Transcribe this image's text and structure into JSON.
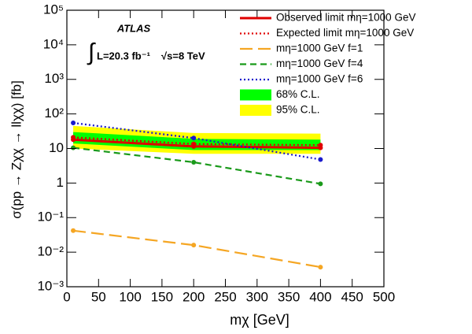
{
  "chart_data": {
    "type": "line",
    "x_label": "mχ [GeV]",
    "y_label": "σ(pp → Zχχ → llχχ) [fb]",
    "annotations": [
      "ATLAS",
      "∫",
      "L=20.3 fb⁻¹",
      "√s=8 TeV"
    ],
    "x": [
      10,
      200,
      400
    ],
    "xlim": [
      0,
      500
    ],
    "xticks": [
      0,
      50,
      100,
      150,
      200,
      250,
      300,
      350,
      400,
      450,
      500
    ],
    "ylim": [
      0.001,
      100000
    ],
    "yticks": [
      {
        "value": 0.001,
        "label": "10⁻³"
      },
      {
        "value": 0.01,
        "label": "10⁻²"
      },
      {
        "value": 0.1,
        "label": "10⁻¹"
      },
      1,
      10,
      {
        "value": 100,
        "label": "10²"
      },
      {
        "value": 1000,
        "label": "10³"
      },
      {
        "value": 10000,
        "label": "10⁴"
      },
      {
        "value": 100000,
        "label": "10⁵"
      }
    ],
    "log_y": true,
    "bands": [
      {
        "name": "95% C.L.",
        "color": "#ffff00",
        "low": [
          10,
          7,
          7
        ],
        "high": [
          45,
          28,
          27
        ]
      },
      {
        "name": "68% C.L.",
        "color": "#00ff00",
        "low": [
          14,
          9,
          9
        ],
        "high": [
          30,
          19,
          18
        ]
      }
    ],
    "series": [
      {
        "name": "Observed limit mη=1000 GeV",
        "color": "#e00000",
        "style": "solid",
        "values": [
          18,
          11.5,
          10.5
        ]
      },
      {
        "name": "Expected limit mη=1000 GeV",
        "color": "#e00000",
        "style": "dotted",
        "values": [
          21,
          13.5,
          12.5
        ]
      },
      {
        "name": "mη=1000 GeV f=1",
        "color": "#f5a623",
        "style": "longdash",
        "values": [
          0.042,
          0.016,
          0.0037
        ]
      },
      {
        "name": "mη=1000 GeV f=4",
        "color": "#1a9a1a",
        "style": "dashed",
        "values": [
          10.5,
          4,
          0.95
        ]
      },
      {
        "name": "mη=1000 GeV f=6",
        "color": "#1a1acc",
        "style": "dotted",
        "values": [
          55,
          20,
          4.8
        ]
      }
    ]
  }
}
